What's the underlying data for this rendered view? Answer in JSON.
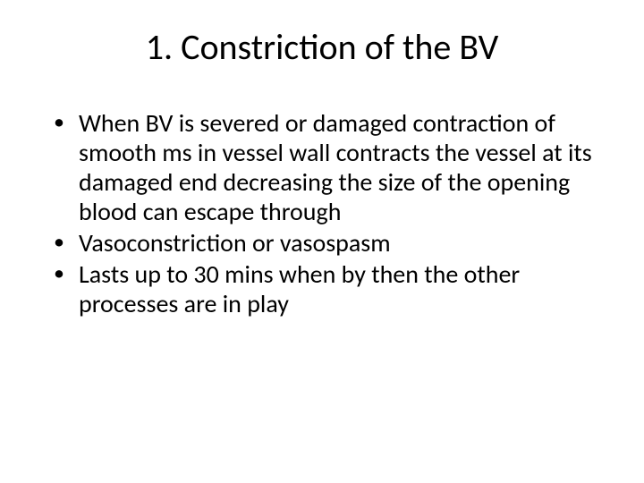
{
  "slide": {
    "title": "1. Constriction of the BV",
    "bullets": [
      "When BV is severed or damaged contraction of smooth ms in vessel wall contracts the vessel at its damaged end decreasing the size of the opening blood can escape through",
      "Vasoconstriction or vasospasm",
      "Lasts up to 30 mins when by then the other processes are in play"
    ]
  },
  "style": {
    "background_color": "#ffffff",
    "text_color": "#000000",
    "title_fontsize": 40,
    "body_fontsize": 28,
    "font_family": "Calibri"
  }
}
